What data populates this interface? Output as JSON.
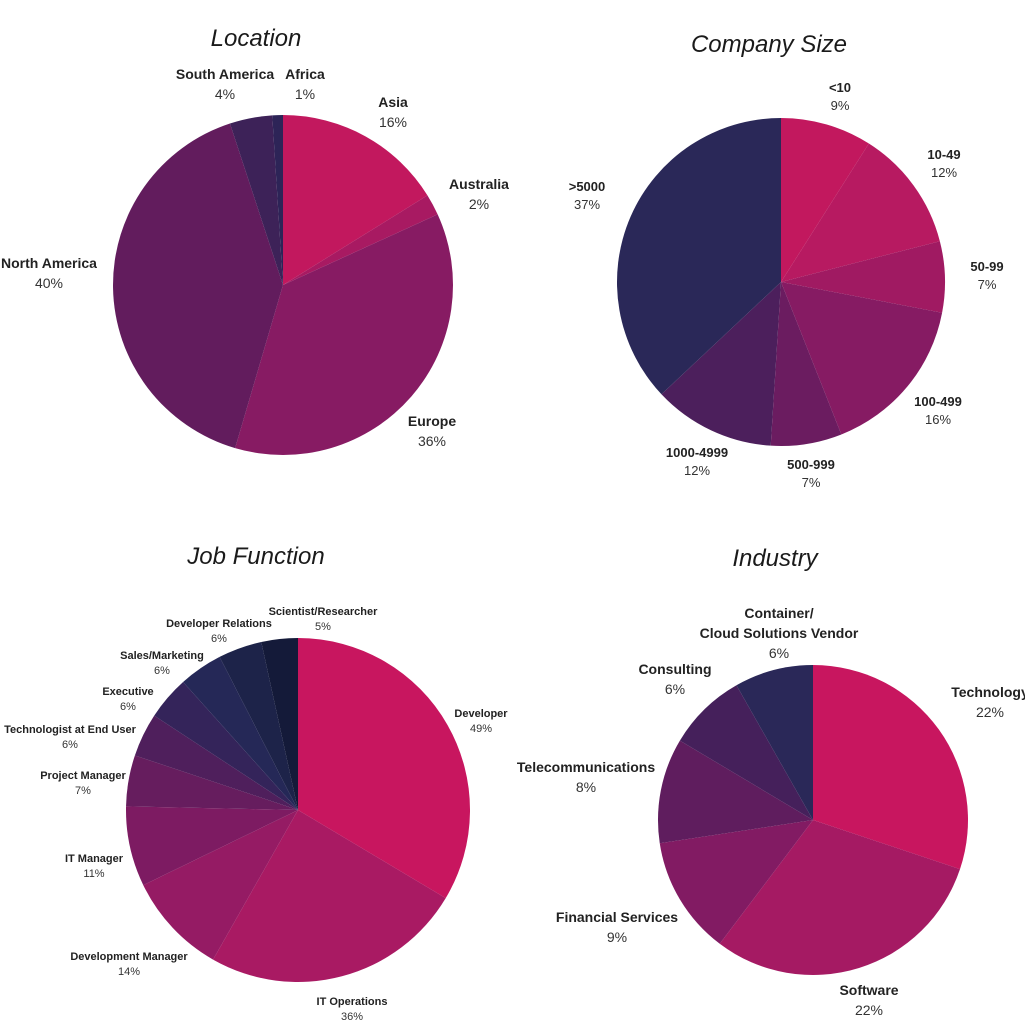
{
  "chart_data": [
    {
      "type": "pie",
      "title": "Location",
      "slices": [
        {
          "label": "Asia",
          "value": 16,
          "pct_label": "16%",
          "color": "#c2185e"
        },
        {
          "label": "Australia",
          "value": 2,
          "pct_label": "2%",
          "color": "#a81a62"
        },
        {
          "label": "Europe",
          "value": 36,
          "pct_label": "36%",
          "color": "#871b63"
        },
        {
          "label": "North America",
          "value": 40,
          "pct_label": "40%",
          "color": "#621c5d"
        },
        {
          "label": "South America",
          "value": 4,
          "pct_label": "4%",
          "color": "#3d2258"
        },
        {
          "label": "Africa",
          "value": 1,
          "pct_label": "1%",
          "color": "#2d2457"
        }
      ]
    },
    {
      "type": "pie",
      "title": "Company Size",
      "slices": [
        {
          "label": "<10",
          "value": 9,
          "pct_label": "9%",
          "color": "#c2185e"
        },
        {
          "label": "10-49",
          "value": 12,
          "pct_label": "12%",
          "color": "#b71a61"
        },
        {
          "label": "50-99",
          "value": 7,
          "pct_label": "7%",
          "color": "#a01a62"
        },
        {
          "label": "100-499",
          "value": 16,
          "pct_label": "16%",
          "color": "#861b63"
        },
        {
          "label": "500-999",
          "value": 7,
          "pct_label": "7%",
          "color": "#6b1c60"
        },
        {
          "label": "1000-4999",
          "value": 12,
          "pct_label": "12%",
          "color": "#4c1f5c"
        },
        {
          "label": ">5000",
          "value": 37,
          "pct_label": "37%",
          "color": "#2a2858"
        }
      ]
    },
    {
      "type": "pie",
      "title": "Job Function",
      "slices": [
        {
          "label": "Developer",
          "value": 49,
          "pct_label": "49%",
          "color": "#c8165f"
        },
        {
          "label": "IT Operations",
          "value": 36,
          "pct_label": "36%",
          "color": "#a91a63"
        },
        {
          "label": "Development Manager",
          "value": 14,
          "pct_label": "14%",
          "color": "#951b64"
        },
        {
          "label": "IT Manager",
          "value": 11,
          "pct_label": "11%",
          "color": "#7d1b62"
        },
        {
          "label": "Project Manager",
          "value": 7,
          "pct_label": "7%",
          "color": "#661d5e"
        },
        {
          "label": "Technologist at End User",
          "value": 6,
          "pct_label": "6%",
          "color": "#4f1f5c"
        },
        {
          "label": "Executive",
          "value": 6,
          "pct_label": "6%",
          "color": "#34245a"
        },
        {
          "label": "Sales/Marketing",
          "value": 6,
          "pct_label": "6%",
          "color": "#252857"
        },
        {
          "label": "Developer Relations",
          "value": 6,
          "pct_label": "6%",
          "color": "#1d2349"
        },
        {
          "label": "Scientist/Researcher",
          "value": 5,
          "pct_label": "5%",
          "color": "#141a39"
        }
      ]
    },
    {
      "type": "pie",
      "title": "Industry",
      "slices": [
        {
          "label": "Technology",
          "value": 22,
          "pct_label": "22%",
          "color": "#c8165f"
        },
        {
          "label": "Software",
          "value": 22,
          "pct_label": "22%",
          "color": "#a51a63"
        },
        {
          "label": "Financial Services",
          "value": 9,
          "pct_label": "9%",
          "color": "#821b63"
        },
        {
          "label": "Telecommunications",
          "value": 8,
          "pct_label": "8%",
          "color": "#5f1d5e"
        },
        {
          "label": "Consulting",
          "value": 6,
          "pct_label": "6%",
          "color": "#45205b"
        },
        {
          "label": "Container/ Cloud Solutions Vendor",
          "value": 6,
          "pct_label": "6%",
          "color": "#2a2858"
        }
      ]
    }
  ]
}
